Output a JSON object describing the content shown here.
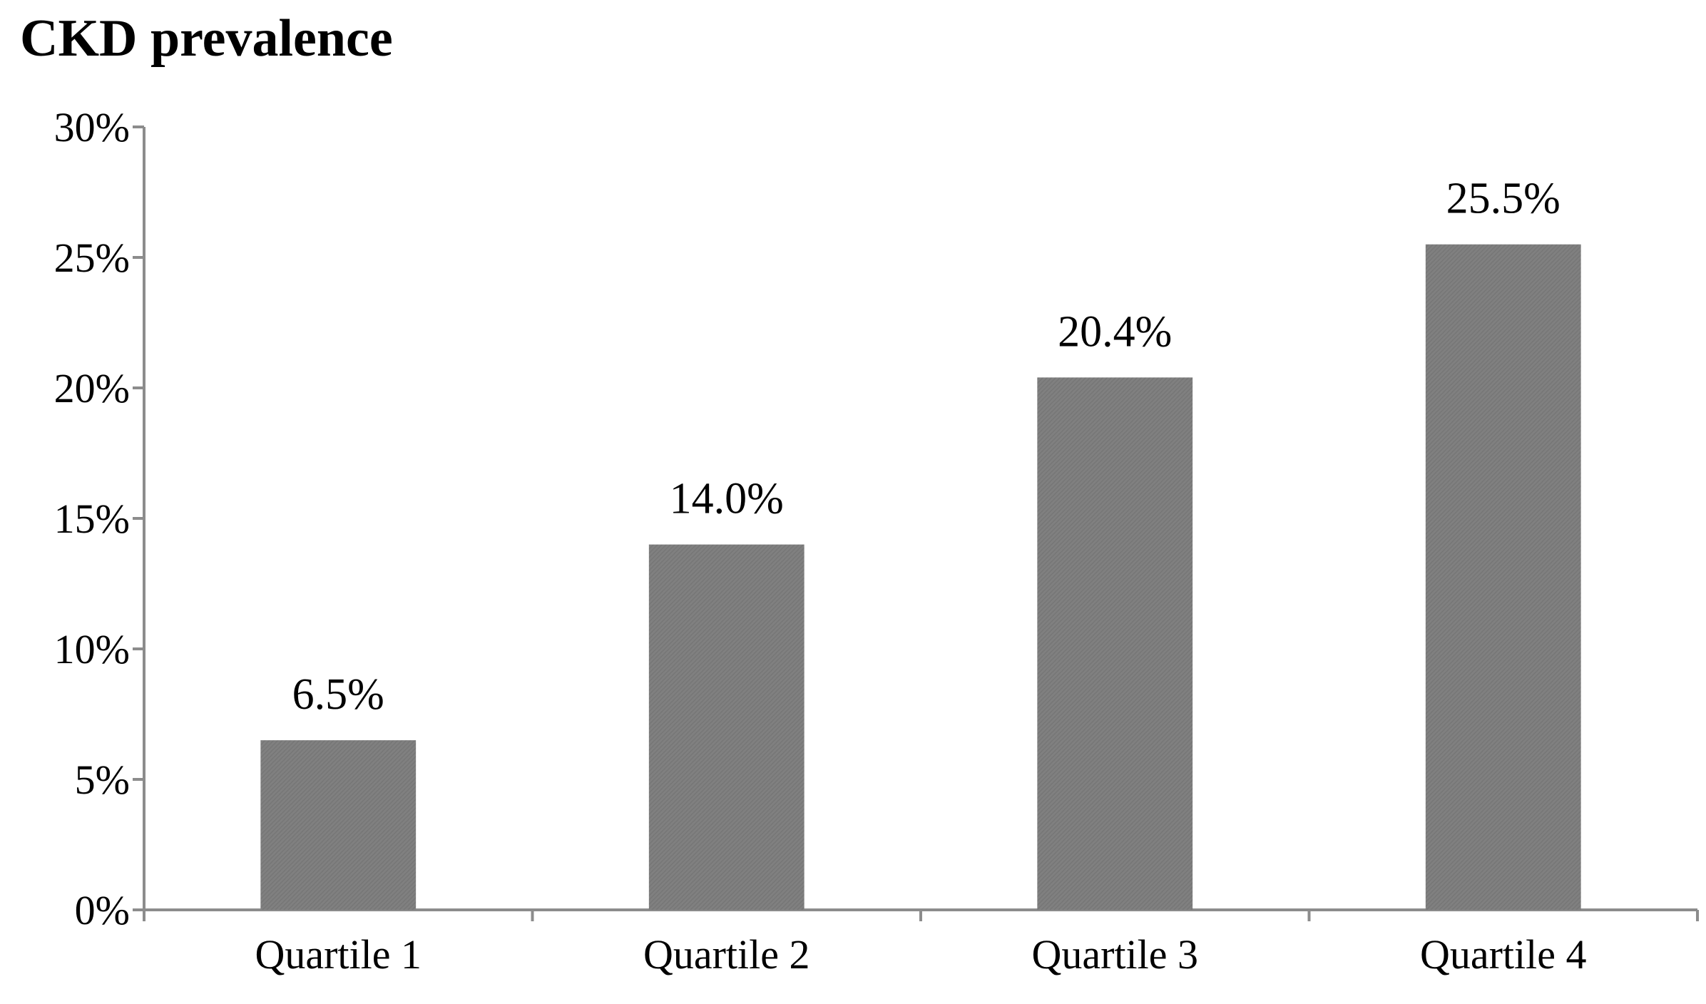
{
  "chart_data": {
    "type": "bar",
    "title": "CKD prevalence",
    "xlabel": "",
    "ylabel": "",
    "categories": [
      "Quartile 1",
      "Quartile 2",
      "Quartile 3",
      "Quartile 4"
    ],
    "values": [
      6.5,
      14.0,
      20.4,
      25.5
    ],
    "value_labels": [
      "6.5%",
      "14.0%",
      "20.4%",
      "25.5%"
    ],
    "ylim": [
      0,
      30
    ],
    "yticks": [
      0,
      5,
      10,
      15,
      20,
      25,
      30
    ],
    "ytick_labels": [
      "0%",
      "5%",
      "10%",
      "15%",
      "20%",
      "25%",
      "30%"
    ],
    "grid": false,
    "legend": "none",
    "bar_color": "#808080",
    "axis_color": "#8c8c8c"
  }
}
